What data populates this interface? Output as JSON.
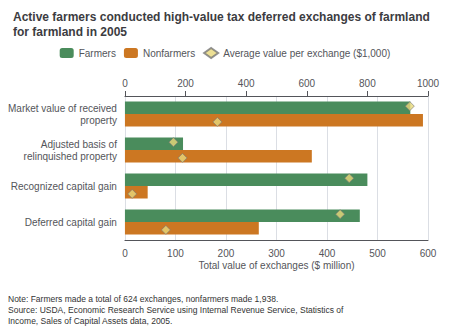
{
  "chart_data": {
    "type": "bar",
    "orientation": "horizontal",
    "title": "Active farmers conducted high-value tax deferred exchanges of farmland\nfor farmland in 2005",
    "categories": [
      "Market value of received\nproperty",
      "Adjusted basis of\nrelinquished property",
      "Recognized capital gain",
      "Deferred capital gain"
    ],
    "series": [
      {
        "name": "Farmers",
        "type": "bar",
        "color": "#4a8c5c",
        "values": [
          565,
          115,
          480,
          465
        ]
      },
      {
        "name": "Nonfarmers",
        "type": "bar",
        "color": "#cc7722",
        "values": [
          590,
          370,
          45,
          265
        ]
      },
      {
        "name": "Average value per exchange ($1,000)",
        "type": "scatter",
        "axis": "x2",
        "marker": "diamond",
        "color": "#e8d87a",
        "values": {
          "Farmers": [
            940,
            160,
            740,
            710
          ],
          "Nonfarmers": [
            305,
            190,
            24,
            135
          ]
        }
      }
    ],
    "xlabel": "Total value of exchanges ($ million)",
    "xlim": [
      0,
      600
    ],
    "xticks": [
      0,
      100,
      200,
      300,
      400,
      500,
      600
    ],
    "x2lim": [
      0,
      1000
    ],
    "x2ticks": [
      0,
      200,
      400,
      600,
      800,
      1000
    ],
    "grid": true,
    "notes": [
      "Note: Farmers made a total of 624 exchanges, nonfarmers made 1,938.",
      "Source: USDA, Economic Research Service using Internal Revenue Service, Statistics of",
      "Income, Sales of Capital Assets data, 2005."
    ]
  }
}
